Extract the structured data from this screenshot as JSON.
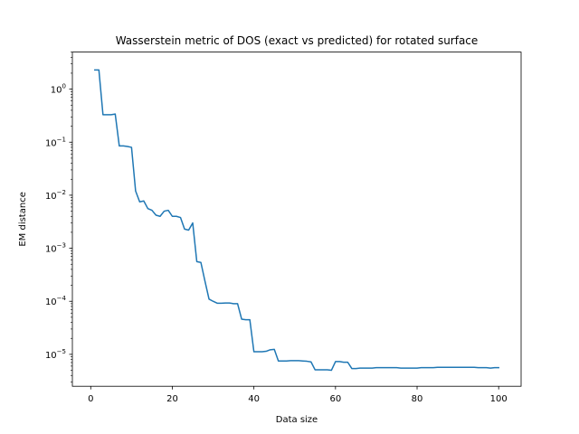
{
  "chart_data": {
    "type": "line",
    "title": "Wasserstein metric of DOS (exact vs predicted) for rotated surface",
    "xlabel": "Data size",
    "ylabel": "EM distance",
    "xlim": [
      -4.5,
      105.5
    ],
    "ylim": [
      2.5e-06,
      5.0
    ],
    "yscale": "log",
    "grid": false,
    "legend": "none",
    "line_color": "#1f77b4",
    "x_ticks": [
      0,
      20,
      40,
      60,
      80,
      100
    ],
    "x_tick_labels": [
      "0",
      "20",
      "40",
      "60",
      "80",
      "100"
    ],
    "y_ticks": [
      1e-05,
      0.0001,
      0.001,
      0.01,
      0.1,
      1
    ],
    "y_tick_labels": [
      {
        "base": "10",
        "exp": "−5"
      },
      {
        "base": "10",
        "exp": "−4"
      },
      {
        "base": "10",
        "exp": "−3"
      },
      {
        "base": "10",
        "exp": "−2"
      },
      {
        "base": "10",
        "exp": "−1"
      },
      {
        "base": "10",
        "exp": "0"
      }
    ],
    "series": [
      {
        "x": [
          1,
          2,
          3,
          4,
          5,
          6,
          7,
          8,
          9,
          10,
          11,
          12,
          13,
          14,
          15,
          16,
          17,
          18,
          19,
          20,
          21,
          22,
          23,
          24,
          25,
          26,
          27,
          28,
          29,
          30,
          31,
          32,
          33,
          34,
          35,
          36,
          37,
          38,
          39,
          40,
          41,
          42,
          43,
          44,
          45,
          46,
          47,
          48,
          49,
          50,
          51,
          52,
          53,
          54,
          55,
          56,
          57,
          58,
          59,
          60,
          61,
          62,
          63,
          64,
          65,
          66,
          67,
          68,
          69,
          70,
          71,
          72,
          73,
          74,
          75,
          76,
          77,
          78,
          79,
          80,
          81,
          82,
          83,
          84,
          85,
          86,
          87,
          88,
          89,
          90,
          91,
          92,
          93,
          94,
          95,
          96,
          97,
          98,
          99,
          100
        ],
        "y": [
          2.3,
          2.3,
          0.33,
          0.33,
          0.33,
          0.34,
          0.085,
          0.085,
          0.083,
          0.08,
          0.012,
          0.0075,
          0.0078,
          0.0056,
          0.0052,
          0.0042,
          0.004,
          0.005,
          0.0052,
          0.004,
          0.004,
          0.0038,
          0.0023,
          0.0022,
          0.003,
          0.00056,
          0.00054,
          0.00024,
          0.00011,
          0.0001,
          9.2e-05,
          9.2e-05,
          9.3e-05,
          9.3e-05,
          9e-05,
          9e-05,
          4.6e-05,
          4.5e-05,
          4.5e-05,
          1.12e-05,
          1.12e-05,
          1.12e-05,
          1.14e-05,
          1.22e-05,
          1.24e-05,
          7.5e-06,
          7.5e-06,
          7.5e-06,
          7.6e-06,
          7.6e-06,
          7.6e-06,
          7.5e-06,
          7.4e-06,
          7.2e-06,
          5.1e-06,
          5.1e-06,
          5.1e-06,
          5.1e-06,
          5e-06,
          7.3e-06,
          7.3e-06,
          7.1e-06,
          7.1e-06,
          5.4e-06,
          5.4e-06,
          5.5e-06,
          5.5e-06,
          5.5e-06,
          5.5e-06,
          5.6e-06,
          5.6e-06,
          5.6e-06,
          5.6e-06,
          5.6e-06,
          5.6e-06,
          5.5e-06,
          5.5e-06,
          5.5e-06,
          5.5e-06,
          5.5e-06,
          5.6e-06,
          5.6e-06,
          5.6e-06,
          5.6e-06,
          5.7e-06,
          5.7e-06,
          5.7e-06,
          5.7e-06,
          5.7e-06,
          5.7e-06,
          5.7e-06,
          5.7e-06,
          5.7e-06,
          5.7e-06,
          5.6e-06,
          5.6e-06,
          5.6e-06,
          5.5e-06,
          5.6e-06,
          5.6e-06
        ]
      }
    ]
  }
}
